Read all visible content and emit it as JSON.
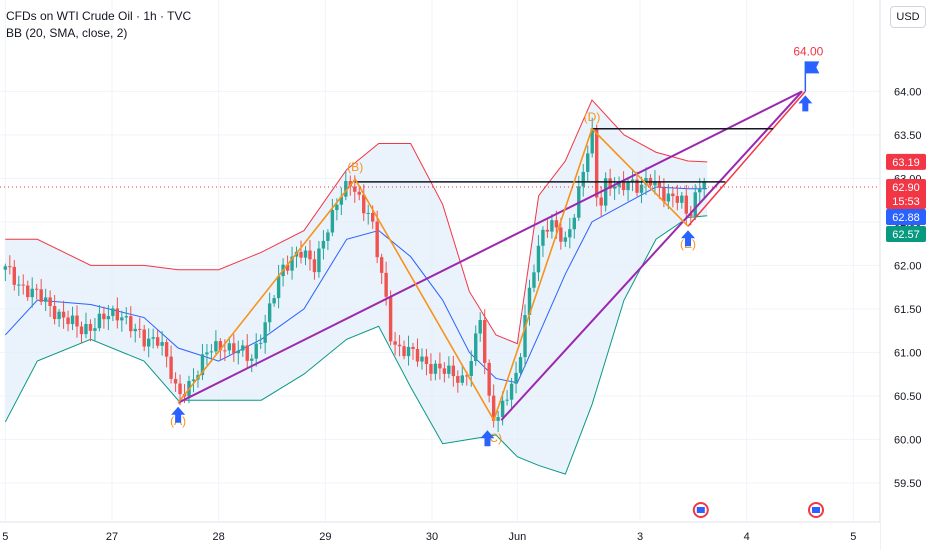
{
  "header": {
    "title": "CFDs on WTI Crude Oil · 1h · TVC",
    "indicator": "BB (20, SMA, close, 2)"
  },
  "currency_button": "USD",
  "colors": {
    "up": "#26a69a",
    "down": "#ef5350",
    "bb_upper": "#f23645",
    "bb_lower": "#089981",
    "bb_basis": "#2962ff",
    "bb_fill": "#e3eefa",
    "pattern": "#f7931a",
    "wedge": "#9c27b0",
    "arrow": "#2962ff",
    "target": "#f23645"
  },
  "chart_data": {
    "type": "candlestick",
    "symbol": "CFDs on WTI Crude Oil",
    "interval": "1h",
    "indicator": "BB (20, SMA, close, 2)",
    "y_ticks": [
      59.5,
      60.0,
      60.5,
      61.0,
      61.5,
      62.0,
      62.5,
      63.0,
      63.5,
      64.0
    ],
    "ylim": [
      59.05,
      65.05
    ],
    "x_tick_labels": [
      {
        "label": "5",
        "day": 0
      },
      {
        "label": "27",
        "day": 1
      },
      {
        "label": "28",
        "day": 2
      },
      {
        "label": "29",
        "day": 3
      },
      {
        "label": "30",
        "day": 4
      },
      {
        "label": "Jun",
        "day": 4.8
      },
      {
        "label": "3",
        "day": 5.95
      },
      {
        "label": "4",
        "day": 6.95
      },
      {
        "label": "5",
        "day": 7.95
      }
    ],
    "xlim": [
      -0.05,
      8.2
    ],
    "price_tags": [
      {
        "value": 63.19,
        "text": "63.19",
        "color": "#f23645"
      },
      {
        "value": 62.9,
        "text": "62.90",
        "sub": "15:53",
        "color": "#f23645"
      },
      {
        "value": 62.88,
        "text": "62.88",
        "color": "#2962ff"
      },
      {
        "value": 62.57,
        "text": "62.57",
        "color": "#089981"
      }
    ],
    "current_price": 62.9,
    "target": {
      "value": 64.0,
      "label": "64.00",
      "day": 7.5
    },
    "pattern_points": [
      {
        "label": "A",
        "day": 1.62,
        "price": 60.42
      },
      {
        "label": "B",
        "day": 3.28,
        "price": 62.99
      },
      {
        "label": "C",
        "day": 4.58,
        "price": 60.22
      },
      {
        "label": "D",
        "day": 5.5,
        "price": 63.57
      },
      {
        "label": "E",
        "day": 6.4,
        "price": 62.45
      }
    ],
    "horizontal_levels": [
      {
        "price": 62.96,
        "from_day": 3.28,
        "to_day": 6.75
      },
      {
        "price": 63.57,
        "from_day": 5.5,
        "to_day": 7.2
      }
    ],
    "wedge_lines": [
      {
        "from": {
          "day": 1.62,
          "price": 60.42
        },
        "to": {
          "day": 7.47,
          "price": 64.0
        }
      },
      {
        "from": {
          "day": 4.65,
          "price": 60.22
        },
        "to": {
          "day": 7.47,
          "price": 64.0
        }
      }
    ],
    "arrow_markers": [
      {
        "day": 1.62,
        "price": 60.42
      },
      {
        "day": 4.52,
        "price": 60.15
      },
      {
        "day": 6.4,
        "price": 62.45
      },
      {
        "day": 7.5,
        "price": 64.0
      }
    ],
    "event_icons": [
      {
        "day": 6.52
      },
      {
        "day": 7.6
      }
    ],
    "price_path": [
      [
        0.0,
        61.95
      ],
      [
        0.12,
        61.8
      ],
      [
        0.3,
        61.65
      ],
      [
        0.5,
        61.45
      ],
      [
        0.7,
        61.25
      ],
      [
        0.9,
        61.38
      ],
      [
        1.1,
        61.45
      ],
      [
        1.3,
        61.1
      ],
      [
        1.45,
        61.2
      ],
      [
        1.55,
        60.75
      ],
      [
        1.62,
        60.45
      ],
      [
        1.75,
        60.7
      ],
      [
        1.9,
        61.0
      ],
      [
        2.05,
        61.1
      ],
      [
        2.2,
        61.0
      ],
      [
        2.3,
        60.9
      ],
      [
        2.45,
        61.4
      ],
      [
        2.6,
        61.95
      ],
      [
        2.75,
        62.2
      ],
      [
        2.9,
        61.95
      ],
      [
        3.0,
        62.4
      ],
      [
        3.12,
        62.75
      ],
      [
        3.25,
        62.95
      ],
      [
        3.35,
        62.7
      ],
      [
        3.42,
        62.6
      ],
      [
        3.48,
        62.15
      ],
      [
        3.55,
        61.75
      ],
      [
        3.62,
        61.15
      ],
      [
        3.7,
        61.05
      ],
      [
        3.85,
        60.95
      ],
      [
        4.0,
        60.85
      ],
      [
        4.15,
        60.75
      ],
      [
        4.3,
        60.7
      ],
      [
        4.4,
        61.05
      ],
      [
        4.45,
        61.4
      ],
      [
        4.5,
        60.8
      ],
      [
        4.55,
        60.3
      ],
      [
        4.62,
        60.3
      ],
      [
        4.7,
        60.5
      ],
      [
        4.8,
        60.7
      ],
      [
        4.88,
        61.5
      ],
      [
        4.95,
        62.0
      ],
      [
        5.05,
        62.4
      ],
      [
        5.15,
        62.45
      ],
      [
        5.25,
        62.3
      ],
      [
        5.35,
        62.65
      ],
      [
        5.45,
        63.25
      ],
      [
        5.5,
        63.55
      ],
      [
        5.56,
        62.6
      ],
      [
        5.62,
        62.95
      ],
      [
        5.75,
        62.85
      ],
      [
        5.85,
        63.0
      ],
      [
        5.95,
        62.9
      ],
      [
        6.05,
        62.95
      ],
      [
        6.15,
        62.85
      ],
      [
        6.25,
        62.8
      ],
      [
        6.33,
        62.75
      ],
      [
        6.4,
        62.5
      ],
      [
        6.48,
        62.85
      ],
      [
        6.55,
        63.05
      ],
      [
        6.58,
        62.9
      ]
    ],
    "bands": [
      {
        "day": 0.0,
        "upper": 62.3,
        "basis": 61.2,
        "lower": 60.2
      },
      {
        "day": 0.3,
        "upper": 62.3,
        "basis": 61.6,
        "lower": 60.9
      },
      {
        "day": 0.8,
        "upper": 62.0,
        "basis": 61.55,
        "lower": 61.15
      },
      {
        "day": 1.3,
        "upper": 62.0,
        "basis": 61.4,
        "lower": 60.9
      },
      {
        "day": 1.62,
        "upper": 61.95,
        "basis": 61.05,
        "lower": 60.45
      },
      {
        "day": 2.0,
        "upper": 61.95,
        "basis": 60.9,
        "lower": 60.45
      },
      {
        "day": 2.4,
        "upper": 62.15,
        "basis": 61.15,
        "lower": 60.45
      },
      {
        "day": 2.8,
        "upper": 62.4,
        "basis": 61.5,
        "lower": 60.75
      },
      {
        "day": 3.2,
        "upper": 63.1,
        "basis": 62.3,
        "lower": 61.15
      },
      {
        "day": 3.5,
        "upper": 63.4,
        "basis": 62.4,
        "lower": 61.3
      },
      {
        "day": 3.8,
        "upper": 63.4,
        "basis": 62.1,
        "lower": 60.6
      },
      {
        "day": 4.1,
        "upper": 62.7,
        "basis": 61.6,
        "lower": 59.95
      },
      {
        "day": 4.35,
        "upper": 61.7,
        "basis": 61.0,
        "lower": 60.0
      },
      {
        "day": 4.6,
        "upper": 61.2,
        "basis": 60.7,
        "lower": 60.05
      },
      {
        "day": 4.8,
        "upper": 61.1,
        "basis": 60.65,
        "lower": 59.8
      },
      {
        "day": 5.0,
        "upper": 62.8,
        "basis": 61.2,
        "lower": 59.7
      },
      {
        "day": 5.25,
        "upper": 63.2,
        "basis": 61.9,
        "lower": 59.6
      },
      {
        "day": 5.5,
        "upper": 63.9,
        "basis": 62.5,
        "lower": 60.4
      },
      {
        "day": 5.8,
        "upper": 63.5,
        "basis": 62.7,
        "lower": 61.6
      },
      {
        "day": 6.1,
        "upper": 63.3,
        "basis": 62.9,
        "lower": 62.3
      },
      {
        "day": 6.4,
        "upper": 63.2,
        "basis": 62.88,
        "lower": 62.55
      },
      {
        "day": 6.58,
        "upper": 63.19,
        "basis": 62.88,
        "lower": 62.57
      }
    ]
  }
}
